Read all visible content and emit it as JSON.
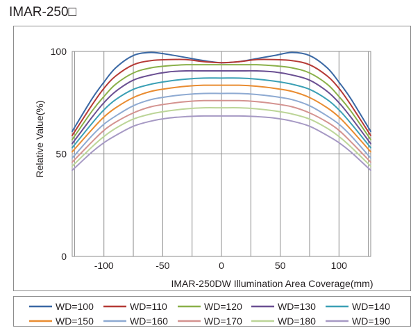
{
  "page": {
    "title": "IMAR-250□"
  },
  "chart_data": {
    "type": "line",
    "title": "",
    "xlabel": "IMAR-250DW  Illumination Area Coverage(mm)",
    "ylabel": "Relative Value(%)",
    "xlim": [
      -127,
      127
    ],
    "ylim": [
      0,
      100
    ],
    "xticks": [
      -100,
      -50,
      0,
      50,
      100
    ],
    "yticks": [
      0,
      50,
      100
    ],
    "xtick_labels": [
      "-100",
      "-50",
      "0",
      "50",
      "100"
    ],
    "ytick_labels": [
      "0",
      "50",
      "100"
    ],
    "grid": true,
    "legend_position": "bottom",
    "x": [
      -127,
      -110,
      -100,
      -90,
      -75,
      -60,
      -45,
      -30,
      -15,
      0,
      15,
      30,
      45,
      60,
      75,
      90,
      100,
      110,
      127
    ],
    "series": [
      {
        "name": "WD=100",
        "color": "#3a68a4",
        "values": [
          61,
          77,
          85,
          92,
          98,
          99.5,
          98.5,
          97,
          95.5,
          94.5,
          95,
          96.5,
          98,
          99.5,
          98,
          92,
          85,
          77,
          61
        ]
      },
      {
        "name": "WD=110",
        "color": "#b53a36",
        "values": [
          59,
          74,
          82,
          88,
          93.5,
          95.5,
          96,
          96,
          95,
          94.5,
          95,
          96,
          96,
          95.5,
          93.5,
          88,
          82,
          74,
          59
        ]
      },
      {
        "name": "WD=120",
        "color": "#8ab049",
        "values": [
          57,
          71,
          78,
          84,
          89.5,
          92,
          93,
          93.5,
          93.5,
          93.5,
          93.5,
          93.5,
          93,
          92,
          89.5,
          84,
          78,
          71,
          57
        ]
      },
      {
        "name": "WD=130",
        "color": "#6a4f92",
        "values": [
          55,
          68,
          75,
          80.5,
          86,
          88.5,
          90,
          90.5,
          90.5,
          90.5,
          90.5,
          90.5,
          90,
          88.5,
          86,
          80.5,
          75,
          68,
          55
        ]
      },
      {
        "name": "WD=140",
        "color": "#3ba0b5",
        "values": [
          53,
          65,
          71.5,
          76.5,
          81.5,
          84,
          85.5,
          86.5,
          87,
          87,
          87,
          86.5,
          85.5,
          84,
          81.5,
          76.5,
          71.5,
          65,
          53
        ]
      },
      {
        "name": "WD=150",
        "color": "#e98c31",
        "values": [
          51,
          62,
          68,
          72.5,
          77.5,
          80.5,
          82,
          83,
          83.5,
          83.5,
          83.5,
          83,
          82,
          80.5,
          77.5,
          72.5,
          68,
          62,
          51
        ]
      },
      {
        "name": "WD=160",
        "color": "#8eaad2",
        "values": [
          48,
          59,
          64.5,
          68.5,
          73.5,
          76.5,
          78,
          79,
          79.5,
          79.5,
          79.5,
          79,
          78,
          76.5,
          73.5,
          68.5,
          64.5,
          59,
          48
        ]
      },
      {
        "name": "WD=170",
        "color": "#d49390",
        "values": [
          46,
          56,
          61.5,
          65.5,
          70,
          73,
          74.5,
          75.5,
          76,
          76,
          76,
          75.5,
          74.5,
          73,
          70,
          65.5,
          61.5,
          56,
          46
        ]
      },
      {
        "name": "WD=180",
        "color": "#bcd598",
        "values": [
          44,
          53.5,
          58.5,
          62.5,
          67,
          69.5,
          71,
          72,
          72.5,
          72.5,
          72.5,
          72,
          71,
          69.5,
          67,
          62.5,
          58.5,
          53.5,
          44
        ]
      },
      {
        "name": "WD=190",
        "color": "#a699c4",
        "values": [
          42,
          51,
          55.5,
          59,
          63.5,
          66,
          67.5,
          68.2,
          68.5,
          68.5,
          68.5,
          68.2,
          67.5,
          66,
          63.5,
          59,
          55.5,
          51,
          42
        ]
      }
    ]
  }
}
